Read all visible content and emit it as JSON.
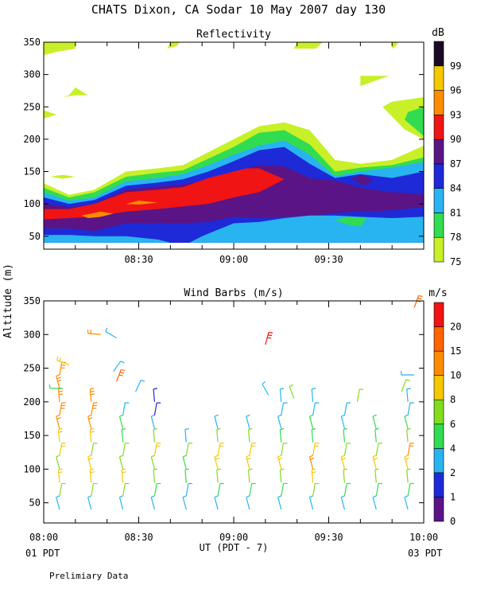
{
  "title": "CHATS Dixon, CA  Sodar  10 May 2007  day 130",
  "footer": {
    "start_label": "01 PDT",
    "end_label": "03 PDT",
    "note": "Prelimiary Data",
    "x_axis_label": "UT  (PDT - 7)"
  },
  "shared_y_label": "Altitude (m)",
  "chart_data": [
    {
      "type": "heatmap",
      "title": "Reflectivity",
      "x_ticks": [
        "08:00",
        "08:30",
        "09:00",
        "09:30",
        "10:00"
      ],
      "y_ticks": [
        50,
        100,
        150,
        200,
        250,
        300,
        350
      ],
      "ylim": [
        30,
        350
      ],
      "colorbar_unit": "dB",
      "colorbar_levels": [
        75,
        78,
        81,
        84,
        87,
        90,
        93,
        96,
        99
      ],
      "colorbar_colors": [
        "#c8f028",
        "#32dc50",
        "#28b4f0",
        "#1e2ad8",
        "#5a1486",
        "#f01414",
        "#ff8c00",
        "#f5c800",
        "#1a0a28"
      ],
      "x_minutes": [
        0,
        5,
        10,
        15,
        20,
        25,
        30,
        35,
        40,
        45,
        50,
        55,
        60,
        65,
        70,
        75,
        80,
        85,
        90,
        95,
        100,
        105,
        110,
        115,
        120
      ],
      "boundaries": {
        "top_75": [
          132,
          114,
          122,
          150,
          155,
          160,
          180,
          200,
          220,
          226,
          214,
          168,
          162,
          168,
          190
        ],
        "top_78": [
          125,
          110,
          118,
          142,
          148,
          152,
          170,
          188,
          210,
          214,
          192,
          150,
          156,
          160,
          172
        ],
        "top_81": [
          118,
          105,
          110,
          135,
          140,
          146,
          160,
          176,
          190,
          198,
          176,
          143,
          150,
          156,
          165
        ],
        "top_84": [
          110,
          100,
          106,
          128,
          133,
          138,
          150,
          166,
          183,
          188,
          162,
          140,
          146,
          140,
          150
        ]
      }
    },
    {
      "type": "scatter",
      "title": "Wind Barbs (m/s)",
      "x_ticks": [
        "08:00",
        "08:30",
        "09:00",
        "09:30",
        "10:00"
      ],
      "y_ticks": [
        50,
        100,
        150,
        200,
        250,
        300,
        350
      ],
      "ylim": [
        20,
        350
      ],
      "colorbar_unit": "m/s",
      "colorbar_levels": [
        0,
        1,
        2,
        4,
        6,
        8,
        10,
        15,
        20
      ],
      "colorbar_colors": [
        "#5a1486",
        "#1e2ad8",
        "#28b4f0",
        "#32dc50",
        "#82dc1e",
        "#f5c800",
        "#ff8c00",
        "#ff6400",
        "#f01414"
      ],
      "profile_times_min": [
        5,
        15,
        25,
        35,
        45,
        55,
        65,
        75,
        85,
        95,
        105,
        115
      ]
    }
  ]
}
